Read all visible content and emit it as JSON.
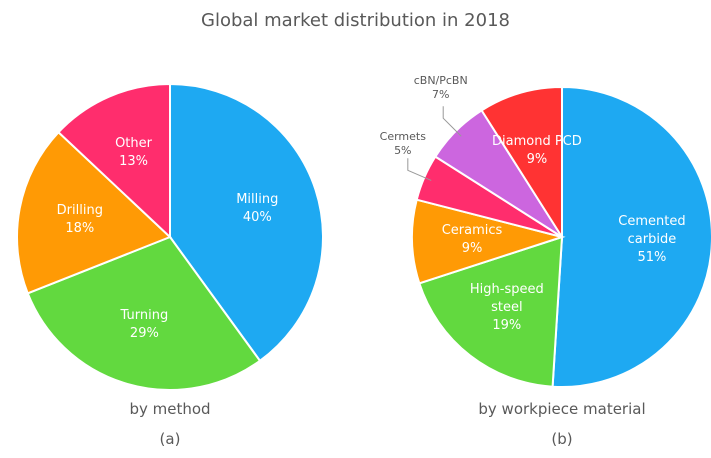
{
  "title": "Global market distribution in 2018",
  "chart_data": [
    {
      "type": "pie",
      "subtitle": "by method",
      "label": "(a)",
      "categories": [
        "Milling",
        "Turning",
        "Drilling",
        "Other"
      ],
      "values": [
        40,
        29,
        18,
        13
      ],
      "value_labels": [
        "40%",
        "29%",
        "18%",
        "13%"
      ],
      "colors": [
        "#1ea9f2",
        "#62d93f",
        "#ff9a05",
        "#ff2d6d"
      ]
    },
    {
      "type": "pie",
      "subtitle": "by workpiece material",
      "label": "(b)",
      "categories": [
        "Cemented carbide",
        "High-speed steel",
        "Ceramics",
        "Cermets",
        "cBN/PcBN",
        "Diamond PCD"
      ],
      "values": [
        51,
        19,
        9,
        5,
        7,
        9
      ],
      "value_labels": [
        "51%",
        "19%",
        "9%",
        "5%",
        "7%",
        "9%"
      ],
      "colors": [
        "#1ea9f2",
        "#62d93f",
        "#ff9a05",
        "#ff2d6d",
        "#cc66df",
        "#ff3333"
      ]
    }
  ]
}
